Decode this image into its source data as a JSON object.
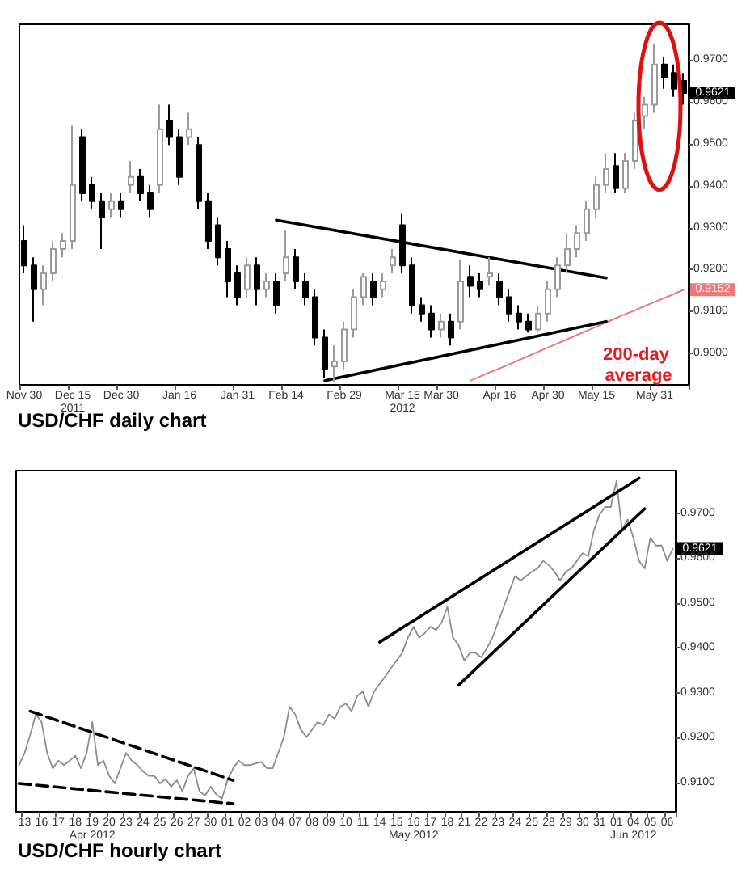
{
  "chart_data": [
    {
      "type": "candlestick",
      "title": "USD/CHF daily chart",
      "marker": "none",
      "colors": [
        "#000000",
        "#000000",
        "#ffffff",
        "#ffffff",
        "#ffffff",
        "#ffffff",
        "#000000",
        "#000000",
        "#000000",
        "#ffffff",
        "#000000",
        "#ffffff",
        "#000000",
        "#000000",
        "#ffffff",
        "#000000",
        "#000000",
        "#ffffff",
        "#000000",
        "#000000",
        "#000000",
        "#000000",
        "#000000",
        "#ffffff",
        "#000000",
        "#ffffff",
        "#000000",
        "#ffffff",
        "#000000",
        "#000000",
        "#000000",
        "#000000",
        "#ffffff",
        "#ffffff",
        "#ffffff",
        "#ffffff",
        "#000000",
        "#ffffff",
        "#ffffff",
        "#000000",
        "#000000",
        "#000000",
        "#000000",
        "#ffffff",
        "#000000",
        "#ffffff",
        "#000000",
        "#000000",
        "#ffffff",
        "#000000",
        "#000000",
        "#000000",
        "#000000",
        "#ffffff",
        "#ffffff",
        "#ffffff",
        "#ffffff",
        "#ffffff",
        "#ffffff",
        "#ffffff",
        "#ffffff",
        "#000000",
        "#ffffff",
        "#ffffff",
        "#ffffff",
        "#ffffff",
        "#000000",
        "#000000",
        "#000000"
      ],
      "categories": [
        "Nov 30",
        null,
        null,
        null,
        null,
        "Dec 15\n2011",
        null,
        null,
        null,
        null,
        "Dec 30",
        null,
        null,
        null,
        null,
        null,
        "Jan 16",
        null,
        null,
        null,
        null,
        null,
        "Jan 31",
        null,
        null,
        null,
        null,
        "Feb 14",
        null,
        null,
        null,
        null,
        null,
        "Feb 29",
        null,
        null,
        null,
        null,
        null,
        "Mar 15\n2012",
        null,
        null,
        null,
        "Mar 30",
        null,
        null,
        null,
        null,
        null,
        "Apr 16",
        null,
        null,
        null,
        null,
        "Apr 30",
        null,
        null,
        null,
        null,
        "May 15",
        null,
        null,
        null,
        null,
        null,
        "May 31",
        null,
        null,
        null
      ],
      "ohlc": [
        [
          0.9268,
          0.9306,
          0.9191,
          0.921
        ],
        [
          0.921,
          0.9229,
          0.9076,
          0.9153
        ],
        [
          0.9153,
          0.921,
          0.9115,
          0.9191
        ],
        [
          0.9191,
          0.9268,
          0.9172,
          0.9249
        ],
        [
          0.9249,
          0.9287,
          0.9229,
          0.9268
        ],
        [
          0.9268,
          0.9543,
          0.9249,
          0.9402
        ],
        [
          0.9516,
          0.9535,
          0.9363,
          0.9382
        ],
        [
          0.9402,
          0.9421,
          0.9344,
          0.9363
        ],
        [
          0.9363,
          0.9382,
          0.9249,
          0.9325
        ],
        [
          0.9344,
          0.9382,
          0.9325,
          0.9363
        ],
        [
          0.9363,
          0.9382,
          0.9325,
          0.9344
        ],
        [
          0.9402,
          0.9459,
          0.9382,
          0.9421
        ],
        [
          0.9421,
          0.944,
          0.9363,
          0.9382
        ],
        [
          0.9382,
          0.9402,
          0.9325,
          0.9344
        ],
        [
          0.9402,
          0.9593,
          0.9382,
          0.9535
        ],
        [
          0.9555,
          0.9593,
          0.9497,
          0.9516
        ],
        [
          0.9516,
          0.9535,
          0.9402,
          0.9421
        ],
        [
          0.9516,
          0.9574,
          0.9497,
          0.9535
        ],
        [
          0.9497,
          0.9516,
          0.9344,
          0.9363
        ],
        [
          0.9363,
          0.9382,
          0.9249,
          0.9268
        ],
        [
          0.9306,
          0.9325,
          0.921,
          0.9229
        ],
        [
          0.9249,
          0.9268,
          0.9134,
          0.9172
        ],
        [
          0.9191,
          0.921,
          0.9115,
          0.9134
        ],
        [
          0.9153,
          0.9229,
          0.9134,
          0.921
        ],
        [
          0.921,
          0.9229,
          0.9115,
          0.9153
        ],
        [
          0.9153,
          0.9191,
          0.9134,
          0.9172
        ],
        [
          0.9172,
          0.9191,
          0.9095,
          0.9115
        ],
        [
          0.9191,
          0.9294,
          0.9172,
          0.9229
        ],
        [
          0.9229,
          0.9249,
          0.9153,
          0.9172
        ],
        [
          0.9172,
          0.9191,
          0.9115,
          0.9134
        ],
        [
          0.9134,
          0.9153,
          0.9019,
          0.9038
        ],
        [
          0.9038,
          0.9057,
          0.8942,
          0.8962
        ],
        [
          0.8969,
          0.9019,
          0.8931,
          0.8981
        ],
        [
          0.8981,
          0.9076,
          0.8962,
          0.9057
        ],
        [
          0.9057,
          0.9153,
          0.9038,
          0.9134
        ],
        [
          0.9134,
          0.9191,
          0.9115,
          0.9183
        ],
        [
          0.9172,
          0.9191,
          0.9115,
          0.9134
        ],
        [
          0.9153,
          0.9191,
          0.9134,
          0.9172
        ],
        [
          0.921,
          0.9249,
          0.9191,
          0.9229
        ],
        [
          0.9306,
          0.9333,
          0.9191,
          0.921
        ],
        [
          0.921,
          0.9229,
          0.9095,
          0.9115
        ],
        [
          0.9115,
          0.9134,
          0.9076,
          0.9095
        ],
        [
          0.9095,
          0.9115,
          0.9038,
          0.9057
        ],
        [
          0.9057,
          0.9095,
          0.9038,
          0.9076
        ],
        [
          0.9076,
          0.9095,
          0.9019,
          0.9038
        ],
        [
          0.9076,
          0.9222,
          0.9057,
          0.9172
        ],
        [
          0.9183,
          0.921,
          0.9134,
          0.9161
        ],
        [
          0.9172,
          0.9191,
          0.9134,
          0.9153
        ],
        [
          0.9183,
          0.9229,
          0.9161,
          0.9191
        ],
        [
          0.9172,
          0.9191,
          0.9115,
          0.9134
        ],
        [
          0.9134,
          0.9153,
          0.9076,
          0.9095
        ],
        [
          0.9095,
          0.9115,
          0.9057,
          0.9076
        ],
        [
          0.9076,
          0.9095,
          0.905,
          0.9057
        ],
        [
          0.9057,
          0.9115,
          0.905,
          0.9095
        ],
        [
          0.9095,
          0.9172,
          0.9076,
          0.9153
        ],
        [
          0.9153,
          0.9229,
          0.9134,
          0.921
        ],
        [
          0.921,
          0.9287,
          0.9191,
          0.9249
        ],
        [
          0.9249,
          0.9306,
          0.9229,
          0.9287
        ],
        [
          0.9287,
          0.9363,
          0.9268,
          0.9344
        ],
        [
          0.9344,
          0.9421,
          0.9325,
          0.9402
        ],
        [
          0.9402,
          0.9478,
          0.9382,
          0.944
        ],
        [
          0.9447,
          0.9478,
          0.9382,
          0.9394
        ],
        [
          0.9394,
          0.9478,
          0.9382,
          0.9459
        ],
        [
          0.9459,
          0.9574,
          0.944,
          0.9555
        ],
        [
          0.9566,
          0.9612,
          0.9535,
          0.9593
        ],
        [
          0.9593,
          0.9738,
          0.9574,
          0.9689
        ],
        [
          0.9689,
          0.9708,
          0.9631,
          0.9658
        ],
        [
          0.9669,
          0.9689,
          0.9612,
          0.9631
        ],
        [
          0.965,
          0.9669,
          0.9593,
          0.9621
        ]
      ],
      "series": [
        {
          "type": "line",
          "name": "200-day average",
          "color": "#f07878",
          "values": [
            null,
            null,
            null,
            null,
            null,
            null,
            null,
            null,
            null,
            null,
            null,
            null,
            null,
            null,
            null,
            null,
            null,
            null,
            null,
            null,
            null,
            null,
            null,
            null,
            null,
            null,
            null,
            null,
            null,
            null,
            null,
            null,
            null,
            null,
            null,
            null,
            null,
            null,
            null,
            null,
            null,
            null,
            null,
            null,
            null,
            null,
            0.8935,
            0.8945,
            0.8955,
            0.8964,
            0.8974,
            0.8984,
            0.8994,
            0.9004,
            0.9014,
            0.9024,
            0.9034,
            0.9044,
            0.9054,
            0.9064,
            0.9074,
            0.9084,
            0.9094,
            0.9103,
            0.9113,
            0.9123,
            0.9132,
            0.9142,
            0.9152
          ]
        },
        {
          "type": "line",
          "color": "#000000",
          "line_style": "solid",
          "values": [
            null,
            null,
            null,
            null,
            null,
            null,
            null,
            null,
            null,
            null,
            null,
            null,
            null,
            null,
            null,
            null,
            null,
            null,
            null,
            null,
            null,
            null,
            null,
            null,
            null,
            null,
            0.9318,
            null,
            null,
            null,
            null,
            null,
            null,
            null,
            null,
            null,
            null,
            null,
            null,
            null,
            null,
            null,
            null,
            null,
            null,
            null,
            null,
            null,
            null,
            null,
            null,
            null,
            null,
            null,
            null,
            null,
            null,
            null,
            null,
            null,
            0.918,
            null,
            null,
            null,
            null,
            null,
            null,
            null,
            null
          ]
        },
        {
          "type": "line",
          "color": "#000000",
          "line_style": "solid",
          "values": [
            null,
            null,
            null,
            null,
            null,
            null,
            null,
            null,
            null,
            null,
            null,
            null,
            null,
            null,
            null,
            null,
            null,
            null,
            null,
            null,
            null,
            null,
            null,
            null,
            null,
            null,
            null,
            null,
            null,
            null,
            null,
            0.8935,
            null,
            null,
            null,
            null,
            null,
            null,
            null,
            null,
            null,
            null,
            null,
            null,
            null,
            null,
            null,
            null,
            null,
            null,
            null,
            null,
            null,
            null,
            null,
            null,
            null,
            null,
            null,
            null,
            0.9076,
            null,
            null,
            null,
            null,
            null,
            null,
            null,
            null
          ]
        }
      ],
      "ylim": [
        0.8925,
        0.9785
      ],
      "yticks": [
        {
          "value": 0.9,
          "label": "0.9000"
        },
        {
          "value": 0.91,
          "label": "0.9100"
        },
        {
          "value": 0.92,
          "label": "0.9200"
        },
        {
          "value": 0.93,
          "label": "0.9300"
        },
        {
          "value": 0.94,
          "label": "0.9400"
        },
        {
          "value": 0.95,
          "label": "0.9500"
        },
        {
          "value": 0.96,
          "label": "0.9600"
        },
        {
          "value": 0.97,
          "label": "0.9700"
        }
      ],
      "annotations": [
        "0.9621",
        "0.9152"
      ]
    },
    {
      "type": "line",
      "title": "USD/CHF hourly chart",
      "marker": "none",
      "categories": [
        null,
        "13",
        null,
        null,
        "16",
        null,
        null,
        "17",
        null,
        null,
        "18",
        null,
        null,
        "19\nApr 2012",
        null,
        null,
        "20",
        null,
        null,
        "23",
        null,
        null,
        "24",
        null,
        null,
        "25",
        null,
        null,
        "26",
        null,
        null,
        "27",
        null,
        null,
        "30",
        null,
        null,
        "01",
        null,
        null,
        "02",
        null,
        null,
        "03",
        null,
        null,
        "04",
        null,
        null,
        "07",
        null,
        null,
        "08",
        null,
        null,
        "09",
        null,
        null,
        "10",
        null,
        null,
        "11",
        null,
        null,
        "14",
        null,
        null,
        "15",
        null,
        null,
        "16\nMay 2012",
        null,
        null,
        "17",
        null,
        null,
        "18",
        null,
        null,
        "21",
        null,
        null,
        "22",
        null,
        null,
        "23",
        null,
        null,
        "24",
        null,
        null,
        "25",
        null,
        null,
        "28",
        null,
        null,
        "29",
        null,
        null,
        "30",
        null,
        null,
        "31",
        null,
        null,
        "01",
        null,
        null,
        "04\nJun 2012",
        null,
        null,
        "05",
        null,
        null,
        "06",
        null
      ],
      "series": [
        {
          "color": "#8c8c8c",
          "line_style": "solid",
          "values": [
            0.9139,
            0.9166,
            0.9207,
            0.9252,
            0.9235,
            0.9166,
            0.9132,
            0.9149,
            0.9139,
            0.9149,
            0.916,
            0.9132,
            0.9166,
            0.9235,
            0.9139,
            0.9149,
            0.9115,
            0.9098,
            0.9132,
            0.9166,
            0.9149,
            0.9139,
            0.9125,
            0.9115,
            0.9115,
            0.9098,
            0.9108,
            0.9091,
            0.9105,
            0.9081,
            0.9115,
            0.9132,
            0.9081,
            0.9071,
            0.9091,
            0.9074,
            0.9064,
            0.9105,
            0.9132,
            0.9149,
            0.9139,
            0.9139,
            0.9143,
            0.9146,
            0.9132,
            0.9132,
            0.9166,
            0.9201,
            0.9269,
            0.9252,
            0.9218,
            0.9201,
            0.9218,
            0.9235,
            0.9228,
            0.9252,
            0.9242,
            0.9269,
            0.9276,
            0.9259,
            0.9293,
            0.9303,
            0.9269,
            0.9303,
            0.932,
            0.9337,
            0.9355,
            0.9372,
            0.9389,
            0.9423,
            0.9447,
            0.9423,
            0.9433,
            0.9447,
            0.944,
            0.9457,
            0.9491,
            0.9423,
            0.9406,
            0.9372,
            0.9389,
            0.9389,
            0.9379,
            0.9399,
            0.9423,
            0.9457,
            0.9491,
            0.9526,
            0.956,
            0.955,
            0.956,
            0.957,
            0.9577,
            0.9594,
            0.9584,
            0.957,
            0.955,
            0.957,
            0.9577,
            0.9594,
            0.9611,
            0.9604,
            0.9662,
            0.9697,
            0.9714,
            0.9714,
            0.9772,
            0.9662,
            0.9686,
            0.9645,
            0.9594,
            0.9577,
            0.9645,
            0.9628,
            0.9628,
            0.9594,
            0.9621
          ]
        },
        {
          "color": "#000000",
          "line_style": "dashed",
          "values": [
            null,
            null,
            0.9259,
            null,
            null,
            null,
            null,
            null,
            null,
            null,
            null,
            null,
            null,
            null,
            null,
            null,
            null,
            null,
            null,
            null,
            null,
            null,
            null,
            null,
            null,
            null,
            null,
            null,
            null,
            null,
            null,
            null,
            null,
            null,
            null,
            null,
            null,
            null,
            0.9105,
            null,
            null,
            null,
            null,
            null,
            null,
            null,
            null,
            null,
            null,
            null,
            null,
            null,
            null,
            null,
            null,
            null,
            null,
            null,
            null,
            null,
            null,
            null,
            null,
            null,
            null,
            null,
            null,
            null,
            null,
            null,
            null,
            null,
            null,
            null,
            null,
            null,
            null,
            null,
            null,
            null,
            null,
            null,
            null,
            null,
            null,
            null,
            null,
            null,
            null,
            null,
            null,
            null,
            null,
            null,
            null,
            null,
            null,
            null,
            null,
            null,
            null,
            null,
            null,
            null,
            null,
            null,
            null,
            null,
            null,
            null,
            null,
            null,
            null,
            null,
            null,
            null,
            null
          ]
        },
        {
          "color": "#000000",
          "line_style": "dashed",
          "values": [
            0.9098,
            null,
            null,
            null,
            null,
            null,
            null,
            null,
            null,
            null,
            null,
            null,
            null,
            null,
            null,
            null,
            null,
            null,
            null,
            null,
            null,
            null,
            null,
            null,
            null,
            null,
            null,
            null,
            null,
            null,
            null,
            null,
            null,
            null,
            null,
            null,
            null,
            null,
            0.9053,
            null,
            null,
            null,
            null,
            null,
            null,
            null,
            null,
            null,
            null,
            null,
            null,
            null,
            null,
            null,
            null,
            null,
            null,
            null,
            null,
            null,
            null,
            null,
            null,
            null,
            null,
            null,
            null,
            null,
            null,
            null,
            null,
            null,
            null,
            null,
            null,
            null,
            null,
            null,
            null,
            null,
            null,
            null,
            null,
            null,
            null,
            null,
            null,
            null,
            null,
            null,
            null,
            null,
            null,
            null,
            null,
            null,
            null,
            null,
            null,
            null,
            null,
            null,
            null,
            null,
            null,
            null,
            null,
            null,
            null,
            null,
            null,
            null,
            null,
            null,
            null,
            null,
            null
          ]
        },
        {
          "color": "#000000",
          "line_style": "solid",
          "values": [
            null,
            null,
            null,
            null,
            null,
            null,
            null,
            null,
            null,
            null,
            null,
            null,
            null,
            null,
            null,
            null,
            null,
            null,
            null,
            null,
            null,
            null,
            null,
            null,
            null,
            null,
            null,
            null,
            null,
            null,
            null,
            null,
            null,
            null,
            null,
            null,
            null,
            null,
            null,
            null,
            null,
            null,
            null,
            null,
            null,
            null,
            null,
            null,
            null,
            null,
            null,
            null,
            null,
            null,
            null,
            null,
            null,
            null,
            null,
            null,
            null,
            null,
            null,
            null,
            0.9413,
            null,
            null,
            null,
            null,
            null,
            null,
            null,
            null,
            null,
            null,
            null,
            null,
            null,
            null,
            null,
            null,
            null,
            null,
            null,
            null,
            null,
            null,
            null,
            null,
            null,
            null,
            null,
            null,
            null,
            null,
            null,
            null,
            null,
            null,
            null,
            null,
            null,
            null,
            null,
            null,
            null,
            null,
            null,
            null,
            null,
            0.9778,
            null,
            null,
            null,
            null,
            null,
            null
          ]
        },
        {
          "color": "#000000",
          "line_style": "solid",
          "values": [
            null,
            null,
            null,
            null,
            null,
            null,
            null,
            null,
            null,
            null,
            null,
            null,
            null,
            null,
            null,
            null,
            null,
            null,
            null,
            null,
            null,
            null,
            null,
            null,
            null,
            null,
            null,
            null,
            null,
            null,
            null,
            null,
            null,
            null,
            null,
            null,
            null,
            null,
            null,
            null,
            null,
            null,
            null,
            null,
            null,
            null,
            null,
            null,
            null,
            null,
            null,
            null,
            null,
            null,
            null,
            null,
            null,
            null,
            null,
            null,
            null,
            null,
            null,
            null,
            null,
            null,
            null,
            null,
            null,
            null,
            null,
            null,
            null,
            null,
            null,
            null,
            null,
            null,
            0.9317,
            null,
            null,
            null,
            null,
            null,
            null,
            null,
            null,
            null,
            null,
            null,
            null,
            null,
            null,
            null,
            null,
            null,
            null,
            null,
            null,
            null,
            null,
            null,
            null,
            null,
            null,
            null,
            null,
            null,
            null,
            null,
            null,
            0.971,
            null,
            null,
            null,
            null,
            null
          ]
        }
      ],
      "ylim": [
        0.9035,
        0.9795
      ],
      "yticks": [
        {
          "value": 0.91,
          "label": "0.9100"
        },
        {
          "value": 0.92,
          "label": "0.9200"
        },
        {
          "value": 0.93,
          "label": "0.9300"
        },
        {
          "value": 0.94,
          "label": "0.9400"
        },
        {
          "value": 0.95,
          "label": "0.9500"
        },
        {
          "value": 0.96,
          "label": "0.9600"
        },
        {
          "value": 0.97,
          "label": "0.9700"
        }
      ],
      "annotations": [
        "0.9621"
      ]
    }
  ]
}
